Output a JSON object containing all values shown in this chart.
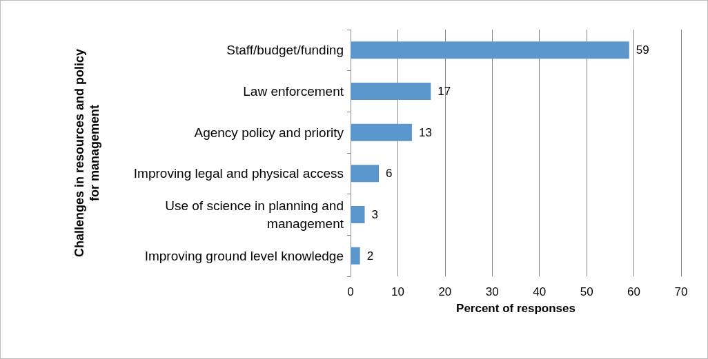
{
  "chart_data": {
    "type": "bar",
    "orientation": "horizontal",
    "xlabel": "Percent of responses",
    "ylabel": "Challenges in resources and policy for management",
    "categories": [
      "Staff/budget/funding",
      "Law enforcement",
      "Agency policy and priority",
      "Improving legal and physical access",
      "Use of science in planning and management",
      "Improving ground level knowledge"
    ],
    "values": [
      59,
      17,
      13,
      6,
      3,
      2
    ],
    "color": "#5b96cd",
    "xlim": [
      0,
      70
    ],
    "xticks": [
      0,
      10,
      20,
      30,
      40,
      50,
      60,
      70
    ],
    "grid": "x",
    "data_labels": true
  }
}
